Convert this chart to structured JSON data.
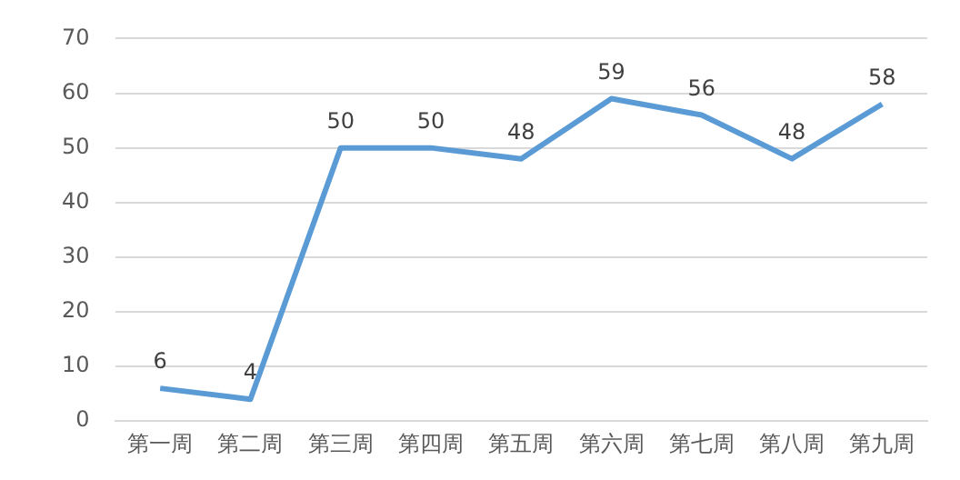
{
  "chart_data": {
    "type": "line",
    "categories": [
      "第一周",
      "第二周",
      "第三周",
      "第四周",
      "第五周",
      "第六周",
      "第七周",
      "第八周",
      "第九周"
    ],
    "series": [
      {
        "color": "#5b9bd5",
        "values": [
          6,
          4,
          50,
          50,
          48,
          59,
          56,
          48,
          58
        ]
      }
    ],
    "ylim": [
      0,
      70
    ],
    "yticks": [
      0,
      10,
      20,
      30,
      40,
      50,
      60,
      70
    ],
    "grid": "y",
    "legend": false,
    "data_labels": true,
    "marker": "none",
    "line_style": "solid"
  }
}
